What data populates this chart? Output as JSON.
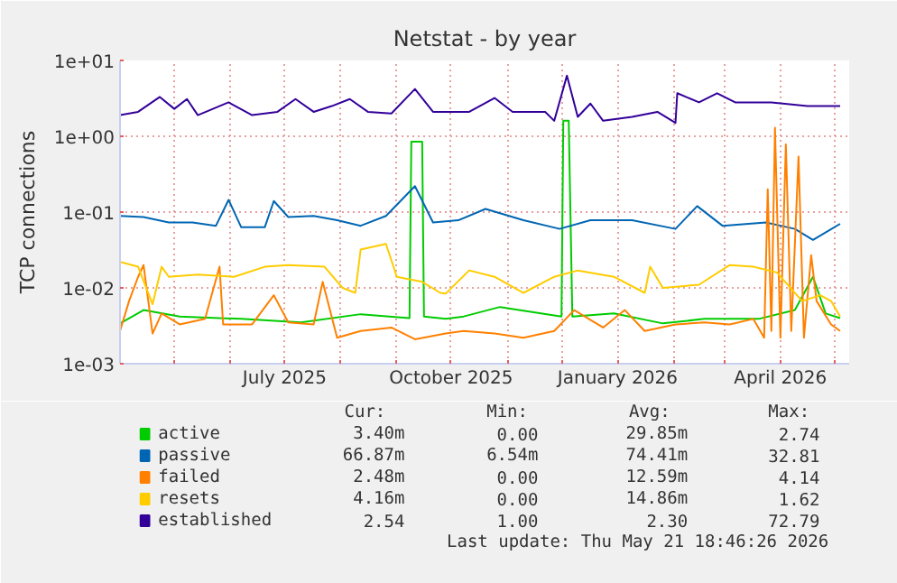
{
  "chart_data": {
    "type": "line",
    "title": "Netstat - by year",
    "ylabel": "TCP connections",
    "log": "y",
    "grid": true,
    "legend": "bottom",
    "line_style": "solid",
    "marker": "none",
    "xlim": [
      "2025-04-01",
      "2026-05-09"
    ],
    "xticks": [
      {
        "value": "2025-05-01",
        "label": null
      },
      {
        "value": "2025-06-01",
        "label": null
      },
      {
        "value": "2025-07-01",
        "label": "July 2025"
      },
      {
        "value": "2025-08-01",
        "label": null
      },
      {
        "value": "2025-09-01",
        "label": null
      },
      {
        "value": "2025-10-01",
        "label": "October 2025"
      },
      {
        "value": "2025-11-01",
        "label": null
      },
      {
        "value": "2025-12-01",
        "label": null
      },
      {
        "value": "2026-01-01",
        "label": "January 2026"
      },
      {
        "value": "2026-02-01",
        "label": null
      },
      {
        "value": "2026-03-01",
        "label": null
      },
      {
        "value": "2026-04-01",
        "label": "April 2026"
      },
      {
        "value": "2026-05-01",
        "label": null
      }
    ],
    "ylim": [
      0.001,
      10
    ],
    "yticks": [
      {
        "value": 0.001,
        "label": "1e-03"
      },
      {
        "value": 0.01,
        "label": "1e-02"
      },
      {
        "value": 0.1,
        "label": "1e-01"
      },
      {
        "value": 1,
        "label": "1e+00"
      },
      {
        "value": 10,
        "label": "1e+01"
      }
    ],
    "series": [
      {
        "name": "active",
        "color": "#00cc00",
        "x": [
          "2025-04-01",
          "2025-04-14",
          "2025-05-04",
          "2025-06-07",
          "2025-07-10",
          "2025-08-12",
          "2025-09-08",
          "2025-09-09",
          "2025-09-15",
          "2025-09-16",
          "2025-09-28",
          "2025-10-08",
          "2025-10-28",
          "2025-12-01",
          "2025-12-02",
          "2025-12-05",
          "2025-12-07",
          "2025-12-30",
          "2026-01-26",
          "2026-02-18",
          "2026-03-20",
          "2026-04-09",
          "2026-04-19",
          "2026-04-26",
          "2026-05-04"
        ],
        "values": [
          0.0034,
          0.0051,
          0.0042,
          0.0039,
          0.0035,
          0.0045,
          0.004,
          0.85,
          0.85,
          0.0042,
          0.0039,
          0.0042,
          0.0056,
          0.0042,
          1.6,
          1.6,
          0.0042,
          0.0046,
          0.0034,
          0.0039,
          0.0039,
          0.0051,
          0.014,
          0.0046,
          0.004
        ]
      },
      {
        "name": "passive",
        "color": "#0066b3",
        "x": [
          "2025-04-01",
          "2025-04-14",
          "2025-04-28",
          "2025-05-11",
          "2025-05-24",
          "2025-05-31",
          "2025-06-07",
          "2025-06-20",
          "2025-06-25",
          "2025-07-03",
          "2025-07-17",
          "2025-07-30",
          "2025-08-12",
          "2025-08-26",
          "2025-09-11",
          "2025-09-21",
          "2025-10-05",
          "2025-10-20",
          "2025-11-10",
          "2025-11-30",
          "2025-12-17",
          "2026-01-09",
          "2026-02-02",
          "2026-02-14",
          "2026-02-28",
          "2026-03-24",
          "2026-04-09",
          "2026-04-19",
          "2026-05-04"
        ],
        "values": [
          0.089,
          0.086,
          0.073,
          0.073,
          0.066,
          0.145,
          0.063,
          0.063,
          0.14,
          0.086,
          0.089,
          0.078,
          0.066,
          0.089,
          0.22,
          0.073,
          0.078,
          0.11,
          0.078,
          0.06,
          0.078,
          0.078,
          0.06,
          0.12,
          0.066,
          0.073,
          0.06,
          0.043,
          0.07
        ]
      },
      {
        "name": "failed",
        "color": "#ff8000",
        "x": [
          "2025-04-01",
          "2025-04-06",
          "2025-04-11",
          "2025-04-14",
          "2025-04-19",
          "2025-04-24",
          "2025-05-04",
          "2025-05-18",
          "2025-05-26",
          "2025-05-28",
          "2025-06-13",
          "2025-06-25",
          "2025-07-03",
          "2025-07-17",
          "2025-07-22",
          "2025-07-30",
          "2025-08-12",
          "2025-08-29",
          "2025-09-11",
          "2025-09-28",
          "2025-10-08",
          "2025-10-25",
          "2025-11-10",
          "2025-11-27",
          "2025-12-08",
          "2025-12-24",
          "2026-01-05",
          "2026-01-16",
          "2026-02-02",
          "2026-02-18",
          "2026-03-04",
          "2026-03-17",
          "2026-03-23",
          "2026-03-25",
          "2026-03-27",
          "2026-03-29",
          "2026-04-01",
          "2026-04-04",
          "2026-04-07",
          "2026-04-11",
          "2026-04-14",
          "2026-04-18",
          "2026-04-21",
          "2026-04-29",
          "2026-05-04"
        ],
        "values": [
          0.0027,
          0.0067,
          0.014,
          0.02,
          0.0025,
          0.0046,
          0.0033,
          0.0039,
          0.019,
          0.0033,
          0.0033,
          0.008,
          0.0035,
          0.0033,
          0.012,
          0.0022,
          0.0027,
          0.003,
          0.0021,
          0.0025,
          0.0027,
          0.0025,
          0.0022,
          0.0027,
          0.0051,
          0.003,
          0.0051,
          0.0027,
          0.0033,
          0.0035,
          0.0033,
          0.0039,
          0.0022,
          0.2,
          0.0027,
          1.3,
          0.0022,
          0.78,
          0.0027,
          0.54,
          0.0022,
          0.027,
          0.0067,
          0.0033,
          0.0027
        ]
      },
      {
        "name": "resets",
        "color": "#ffcc00",
        "x": [
          "2025-04-01",
          "2025-04-11",
          "2025-04-19",
          "2025-04-24",
          "2025-04-28",
          "2025-05-14",
          "2025-06-03",
          "2025-06-20",
          "2025-07-03",
          "2025-07-23",
          "2025-08-02",
          "2025-08-09",
          "2025-08-12",
          "2025-08-26",
          "2025-09-01",
          "2025-09-15",
          "2025-09-25",
          "2025-09-28",
          "2025-10-11",
          "2025-10-25",
          "2025-11-10",
          "2025-11-27",
          "2025-12-10",
          "2025-12-30",
          "2026-01-16",
          "2026-01-19",
          "2026-01-26",
          "2026-02-15",
          "2026-03-04",
          "2026-03-17",
          "2026-03-30",
          "2026-04-13",
          "2026-04-23",
          "2026-04-29",
          "2026-05-04"
        ],
        "values": [
          0.022,
          0.019,
          0.0061,
          0.019,
          0.014,
          0.015,
          0.014,
          0.019,
          0.02,
          0.019,
          0.01,
          0.0086,
          0.032,
          0.038,
          0.014,
          0.012,
          0.0086,
          0.0084,
          0.017,
          0.014,
          0.0086,
          0.014,
          0.017,
          0.014,
          0.0086,
          0.019,
          0.01,
          0.011,
          0.02,
          0.019,
          0.016,
          0.0067,
          0.008,
          0.0067,
          0.0042
        ]
      },
      {
        "name": "established",
        "color": "#330099",
        "x": [
          "2025-04-01",
          "2025-04-11",
          "2025-04-23",
          "2025-05-01",
          "2025-05-08",
          "2025-05-14",
          "2025-05-31",
          "2025-06-13",
          "2025-06-27",
          "2025-07-07",
          "2025-07-17",
          "2025-07-27",
          "2025-08-06",
          "2025-08-16",
          "2025-08-29",
          "2025-09-11",
          "2025-09-21",
          "2025-10-11",
          "2025-10-25",
          "2025-11-04",
          "2025-11-22",
          "2025-11-27",
          "2025-12-04",
          "2025-12-10",
          "2025-12-17",
          "2025-12-24",
          "2026-01-09",
          "2026-01-23",
          "2026-02-02",
          "2026-02-03",
          "2026-02-15",
          "2026-02-25",
          "2026-03-07",
          "2026-03-27",
          "2026-04-16",
          "2026-05-04"
        ],
        "values": [
          1.9,
          2.1,
          3.3,
          2.3,
          3.1,
          1.9,
          2.8,
          1.9,
          2.1,
          3.1,
          2.1,
          2.5,
          3.1,
          2.1,
          2.0,
          4.2,
          2.1,
          2.1,
          3.2,
          2.1,
          2.1,
          1.6,
          6.3,
          1.8,
          2.7,
          1.6,
          1.8,
          2.1,
          1.5,
          3.7,
          2.8,
          3.7,
          2.8,
          2.8,
          2.5,
          2.5
        ]
      }
    ],
    "annotations": [
      "Cur:",
      "Min:",
      "Avg:",
      "Max:",
      "3.40m",
      "0.00",
      "29.85m",
      "2.74",
      "66.87m",
      "6.54m",
      "74.41m",
      "32.81",
      "2.48m",
      "0.00",
      "12.59m",
      "4.14",
      "4.16m",
      "0.00",
      "14.86m",
      "1.62",
      "2.54",
      "1.00",
      "2.30",
      "72.79",
      "Last update: Thu May 21 18:46:26 2026"
    ]
  }
}
